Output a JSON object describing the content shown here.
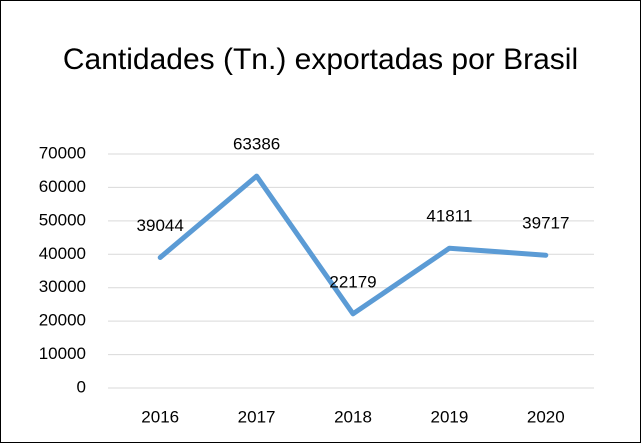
{
  "chart_data": {
    "type": "line",
    "title": "Cantidades (Tn.) exportadas por Brasil",
    "categories": [
      "2016",
      "2017",
      "2018",
      "2019",
      "2020"
    ],
    "series": [
      {
        "name": "Cantidades",
        "color": "#5b9bd5",
        "values": [
          39044,
          63386,
          22179,
          41811,
          39717
        ]
      }
    ],
    "ylim": [
      0,
      70000
    ],
    "yticks": [
      0,
      10000,
      20000,
      30000,
      40000,
      50000,
      60000,
      70000
    ],
    "grid": true
  }
}
